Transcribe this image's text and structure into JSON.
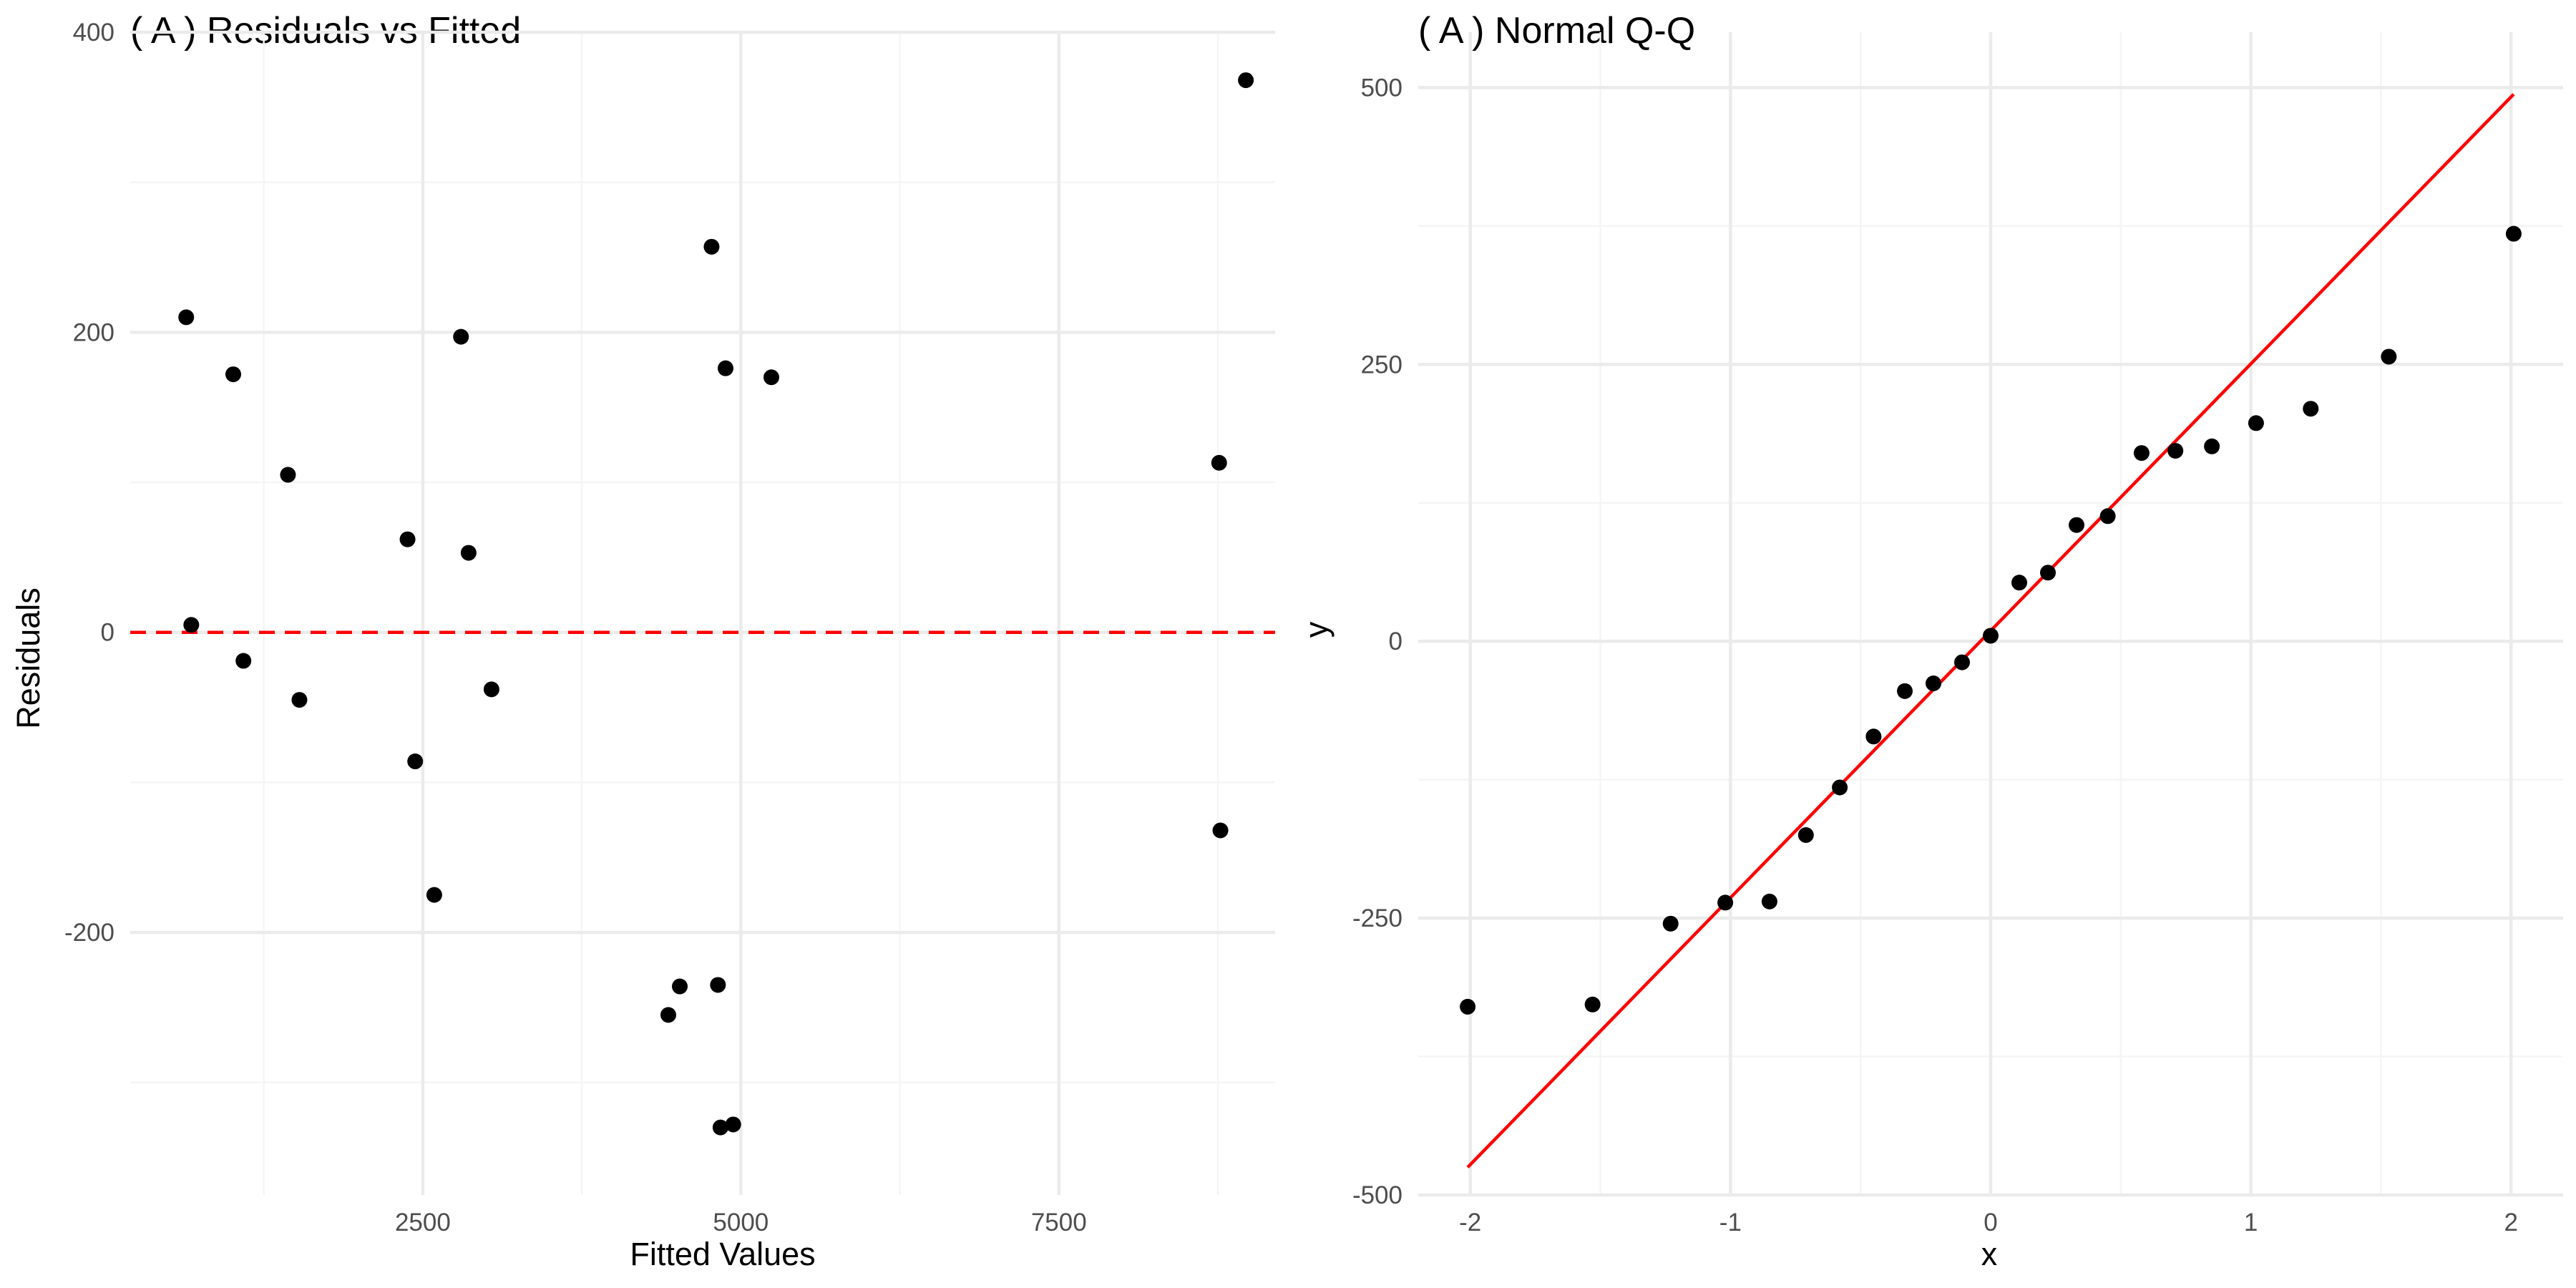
{
  "chart_data": [
    {
      "type": "scatter",
      "title": "( A ) Residuals vs Fitted",
      "xlabel": "Fitted Values",
      "ylabel": "Residuals",
      "xlim": [
        200,
        9200
      ],
      "ylim": [
        -375,
        400
      ],
      "xticks": [
        2500,
        5000,
        7500
      ],
      "xtick_labels": [
        "2500",
        "5000",
        "7500"
      ],
      "yticks": [
        400,
        200,
        0,
        -200
      ],
      "ytick_labels": [
        "400",
        "200",
        "0",
        "-200"
      ],
      "grid": true,
      "reference_line": {
        "y": 0,
        "style": "dashed",
        "color": "#ff0000"
      },
      "point_color": "#000000",
      "x": [
        640,
        680,
        1010,
        1090,
        1440,
        1530,
        2380,
        2440,
        2590,
        2800,
        2860,
        3040,
        4430,
        4520,
        4770,
        4820,
        4840,
        4880,
        4940,
        5240,
        8760,
        8770,
        8970
      ],
      "y": [
        210,
        5,
        172,
        -19,
        105,
        -45,
        62,
        -86,
        -175,
        197,
        53,
        -38,
        -255,
        -236,
        257,
        -235,
        -330,
        176,
        -328,
        170,
        113,
        -132,
        368
      ]
    },
    {
      "type": "scatter",
      "title": "( A ) Normal Q-Q",
      "xlabel": "x",
      "ylabel": "y",
      "xlim": [
        -2.2,
        2.2
      ],
      "ylim": [
        -500,
        550
      ],
      "xticks": [
        -2,
        -1,
        0,
        1,
        2
      ],
      "xtick_labels": [
        "-2",
        "-1",
        "0",
        "1",
        "2"
      ],
      "yticks": [
        500,
        250,
        0,
        -250,
        -500
      ],
      "ytick_labels": [
        "500",
        "250",
        "0",
        "-250",
        "-500"
      ],
      "grid": true,
      "reference_line": {
        "x": [
          -2.01,
          2.01
        ],
        "y": [
          -475,
          494
        ],
        "style": "solid",
        "color": "#ff0000"
      },
      "point_color": "#000000",
      "x": [
        -2.01,
        -1.53,
        -1.23,
        -1.02,
        -0.85,
        -0.71,
        -0.58,
        -0.45,
        -0.33,
        -0.22,
        -0.11,
        0,
        0.11,
        0.22,
        0.33,
        0.45,
        0.58,
        0.71,
        0.85,
        1.02,
        1.23,
        1.53,
        2.01
      ],
      "y": [
        -330,
        -328,
        -255,
        -236,
        -235,
        -175,
        -132,
        -86,
        -45,
        -38,
        -19,
        5,
        53,
        62,
        105,
        113,
        170,
        172,
        176,
        197,
        210,
        257,
        368
      ]
    }
  ]
}
